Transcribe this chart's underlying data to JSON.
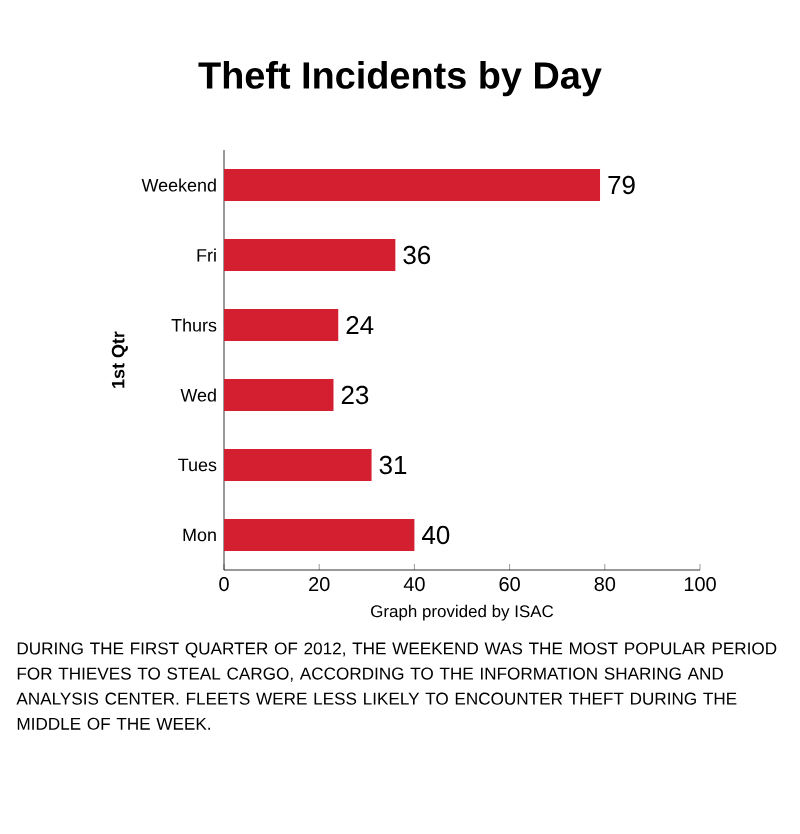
{
  "chart_data": {
    "type": "bar",
    "orientation": "horizontal",
    "title": "Theft Incidents by Day",
    "ylabel": "1st Qtr",
    "xlabel": "Graph provided by ISAC",
    "categories": [
      "Weekend",
      "Fri",
      "Thurs",
      "Wed",
      "Tues",
      "Mon"
    ],
    "values": [
      79,
      36,
      24,
      23,
      31,
      40
    ],
    "color": "#d31f2f",
    "xlim": [
      0,
      100
    ],
    "xticks": [
      0,
      20,
      40,
      60,
      80,
      100
    ],
    "data_labels": true,
    "grid": false,
    "annotations": [
      "DURING THE FIRST QUARTER OF 2012, THE WEEKEND WAS THE MOST POPULAR PERIOD FOR THIEVES TO STEAL CARGO, ACCORDING TO THE INFORMATION SHARING AND ANALYSIS CENTER. FLEETS WERE LESS LIKELY TO ENCOUNTER THEFT DURING THE MIDDLE OF THE WEEK."
    ]
  }
}
